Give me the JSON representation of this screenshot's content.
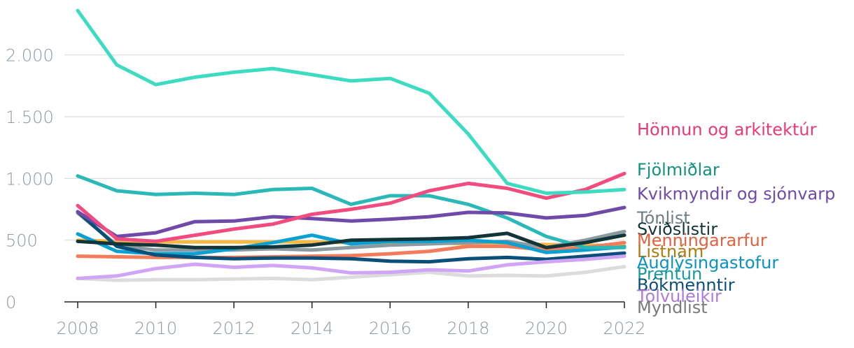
{
  "chart_data": {
    "type": "line",
    "title": "",
    "xlabel": "",
    "ylabel": "",
    "ylim": [
      0,
      2400
    ],
    "xlim": [
      2008,
      2022
    ],
    "grid": true,
    "y_ticks": [
      0,
      500,
      1000,
      1500,
      2000
    ],
    "y_tick_labels": [
      "0",
      "500",
      "1.000",
      "1.500",
      "2.000"
    ],
    "x_ticks": [
      2008,
      2010,
      2012,
      2014,
      2016,
      2018,
      2020,
      2022
    ],
    "x_tick_labels": [
      "2008",
      "2010",
      "2012",
      "2014",
      "2016",
      "2018",
      "2020",
      "2022"
    ],
    "x": [
      2008,
      2009,
      2010,
      2011,
      2012,
      2013,
      2014,
      2015,
      2016,
      2017,
      2018,
      2019,
      2020,
      2021,
      2022
    ],
    "series": [
      {
        "name": "Myndlist",
        "color": "#dcdcdc",
        "label_color": "#7a7a7a",
        "values": [
          190,
          175,
          180,
          180,
          185,
          190,
          180,
          200,
          220,
          240,
          210,
          215,
          210,
          240,
          285
        ]
      },
      {
        "name": "Listnám",
        "color": "#f5b944",
        "label_color": "#b07a10",
        "values": [
          500,
          490,
          485,
          485,
          485,
          485,
          485,
          480,
          480,
          480,
          470,
          470,
          465,
          460,
          455
        ]
      },
      {
        "name": "Tónlist",
        "color": "#8a9aa0",
        "label_color": "#6f7d84",
        "values": [
          720,
          460,
          420,
          420,
          420,
          430,
          420,
          440,
          460,
          470,
          480,
          490,
          440,
          500,
          570
        ]
      },
      {
        "name": "Menningararfur",
        "color": "#f47c5a",
        "label_color": "#e0623e",
        "values": [
          370,
          365,
          360,
          360,
          360,
          365,
          370,
          375,
          390,
          410,
          450,
          450,
          420,
          440,
          480
        ]
      },
      {
        "name": "Auglýsingastofur",
        "color": "#0aa0d2",
        "label_color": "#0a93c0",
        "values": [
          550,
          410,
          390,
          390,
          430,
          480,
          540,
          470,
          490,
          490,
          500,
          480,
          400,
          420,
          445
        ]
      },
      {
        "name": "Prentun",
        "color": "#2ab8b8",
        "label_color": "#1a9aa0",
        "values": [
          1020,
          900,
          870,
          880,
          870,
          910,
          920,
          790,
          860,
          860,
          790,
          680,
          530,
          440,
          440
        ]
      },
      {
        "name": "Bókmenntir",
        "color": "#0a4f7a",
        "label_color": "#0a4f7a",
        "values": [
          730,
          450,
          380,
          360,
          350,
          355,
          355,
          350,
          330,
          325,
          350,
          360,
          345,
          370,
          395
        ]
      },
      {
        "name": "Tölvuleikir",
        "color": "#d1a5f5",
        "label_color": "#b07ad8",
        "values": [
          190,
          210,
          270,
          305,
          280,
          295,
          275,
          235,
          240,
          260,
          250,
          300,
          325,
          345,
          370
        ]
      },
      {
        "name": "Kvikmyndir og sjónvarp",
        "color": "#6f4aa8",
        "label_color": "#6f4aa8",
        "values": [
          730,
          530,
          560,
          650,
          655,
          690,
          675,
          655,
          670,
          690,
          725,
          720,
          680,
          700,
          765
        ]
      },
      {
        "name": "Sviðslistir",
        "color": "#13353a",
        "label_color": "#13353a",
        "values": [
          490,
          470,
          460,
          440,
          440,
          445,
          460,
          500,
          505,
          510,
          520,
          555,
          440,
          480,
          540
        ]
      },
      {
        "name": "Hönnun og arkitektúr",
        "color": "#f24b7f",
        "label_color": "#e83a73",
        "values": [
          780,
          510,
          490,
          540,
          590,
          630,
          710,
          750,
          800,
          900,
          960,
          920,
          840,
          910,
          1040
        ]
      },
      {
        "name": "Fjölmiðlar",
        "color": "#3ddcc2",
        "label_color": "#16907e",
        "values": [
          2360,
          1920,
          1760,
          1820,
          1860,
          1890,
          1840,
          1790,
          1810,
          1690,
          1360,
          960,
          880,
          890,
          910
        ]
      }
    ]
  }
}
